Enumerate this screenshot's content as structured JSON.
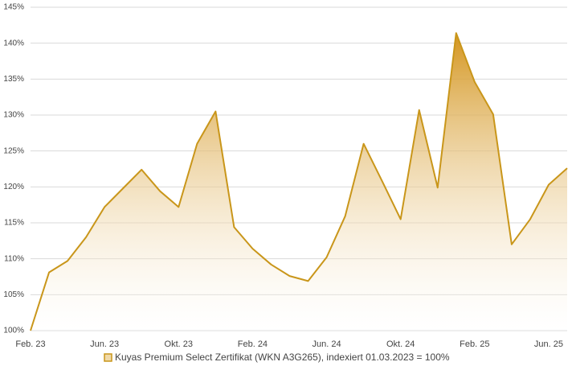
{
  "chart_data": {
    "type": "area",
    "categories": [
      "Feb. 23",
      null,
      null,
      null,
      "Jun. 23",
      null,
      null,
      null,
      "Okt. 23",
      null,
      null,
      null,
      "Feb. 24",
      null,
      null,
      null,
      "Jun. 24",
      null,
      null,
      null,
      "Okt. 24",
      null,
      null,
      null,
      "Feb. 25",
      null,
      null,
      null,
      "Jun. 25",
      null
    ],
    "series": [
      {
        "name": "Kuyas Premium Select Zertifikat (WKN A3G265),  indexiert 01.03.2023 = 100%",
        "color": "#c9961a",
        "values": [
          100.0,
          108.1,
          109.7,
          113.0,
          117.2,
          119.8,
          122.4,
          119.4,
          117.2,
          126.0,
          130.5,
          114.4,
          111.4,
          109.2,
          107.6,
          106.9,
          110.2,
          115.9,
          126.0,
          120.8,
          115.5,
          130.7,
          119.9,
          141.4,
          134.6,
          130.1,
          112.0,
          115.5,
          120.3,
          122.6
        ]
      }
    ],
    "ylim": [
      100,
      145
    ],
    "yticks": [
      {
        "value": 100,
        "label": "100%"
      },
      {
        "value": 105,
        "label": "105%"
      },
      {
        "value": 110,
        "label": "110%"
      },
      {
        "value": 115,
        "label": "115%"
      },
      {
        "value": 120,
        "label": "120%"
      },
      {
        "value": 125,
        "label": "125%"
      },
      {
        "value": 130,
        "label": "130%"
      },
      {
        "value": 135,
        "label": "135%"
      },
      {
        "value": 140,
        "label": "140%"
      },
      {
        "value": 145,
        "label": "145%"
      }
    ],
    "grid": true,
    "legend": "bottom"
  }
}
